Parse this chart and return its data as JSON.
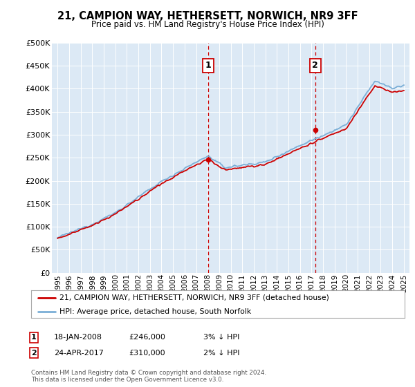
{
  "title": "21, CAMPION WAY, HETHERSETT, NORWICH, NR9 3FF",
  "subtitle": "Price paid vs. HM Land Registry's House Price Index (HPI)",
  "legend_line1": "21, CAMPION WAY, HETHERSETT, NORWICH, NR9 3FF (detached house)",
  "legend_line2": "HPI: Average price, detached house, South Norfolk",
  "annotation1_date": "18-JAN-2008",
  "annotation1_price": "£246,000",
  "annotation1_hpi": "3% ↓ HPI",
  "annotation2_date": "24-APR-2017",
  "annotation2_price": "£310,000",
  "annotation2_hpi": "2% ↓ HPI",
  "footer": "Contains HM Land Registry data © Crown copyright and database right 2024.\nThis data is licensed under the Open Government Licence v3.0.",
  "ylim": [
    0,
    500000
  ],
  "yticks": [
    0,
    50000,
    100000,
    150000,
    200000,
    250000,
    300000,
    350000,
    400000,
    450000,
    500000
  ],
  "xlim_start": 1994.5,
  "xlim_end": 2025.5,
  "red_color": "#cc0000",
  "blue_color": "#7aaed6",
  "background_color": "#dce9f5",
  "plot_bg": "#ffffff",
  "annotation_vline_color": "#cc0000",
  "annotation_box_color": "#cc0000",
  "sale1_x": 2008.05,
  "sale1_y": 246000,
  "sale2_x": 2017.32,
  "sale2_y": 310000
}
